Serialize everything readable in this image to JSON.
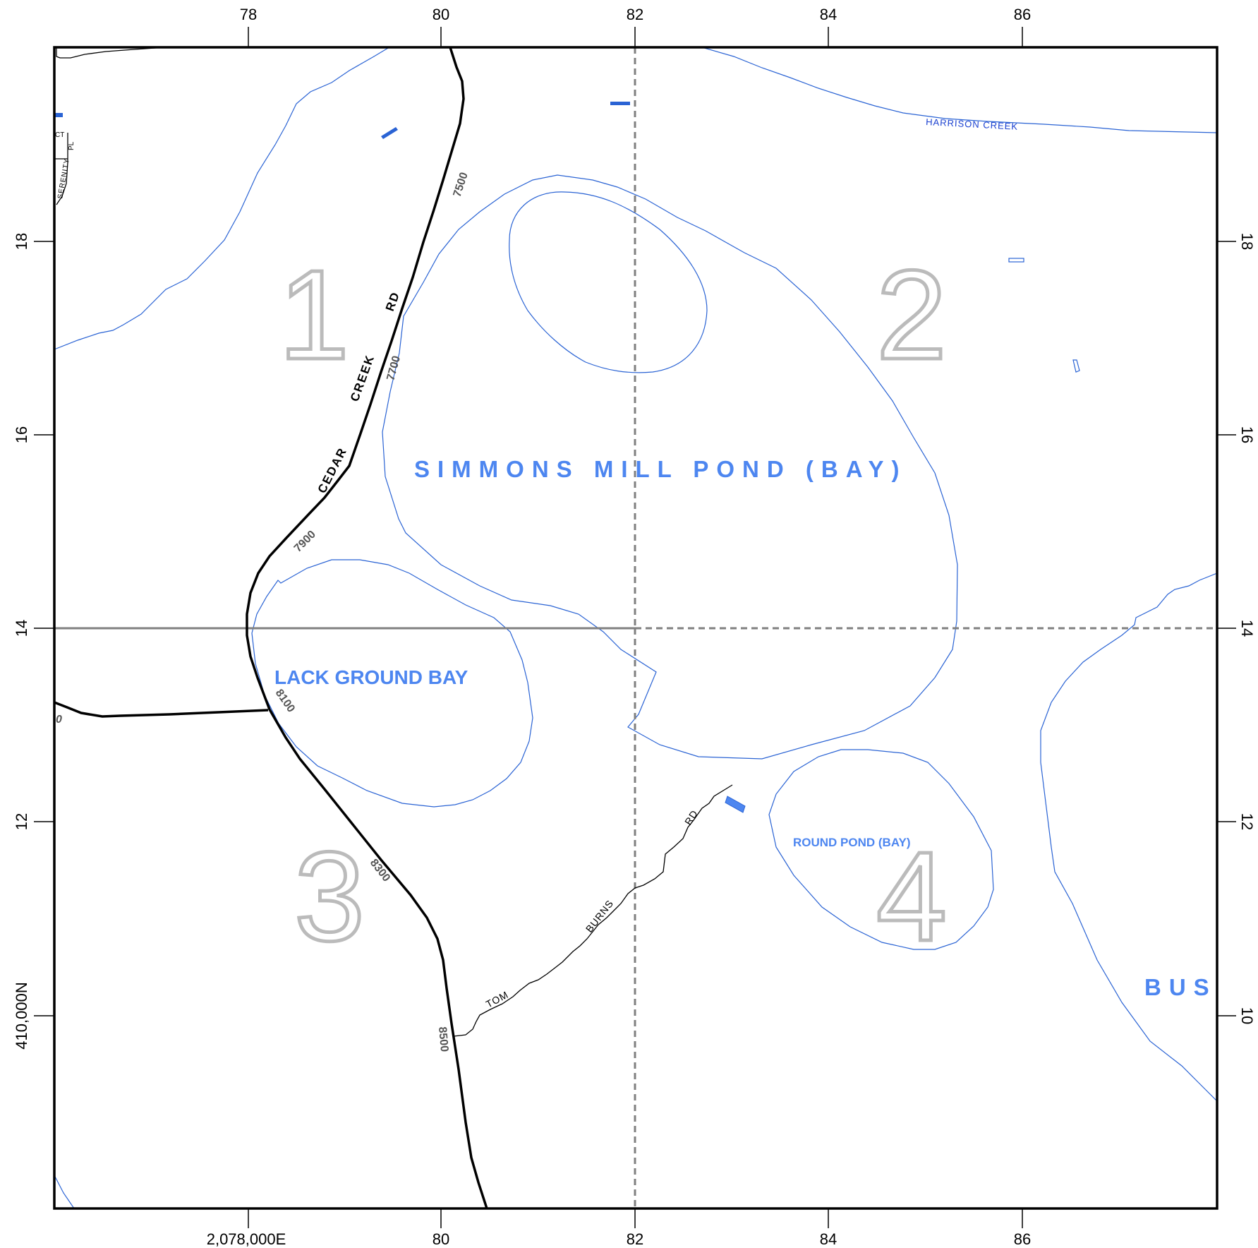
{
  "axes": {
    "top_ticks": [
      "78",
      "80",
      "82",
      "84",
      "86"
    ],
    "bottom_ticks": [
      "2,078,000E",
      "80",
      "82",
      "84",
      "86"
    ],
    "left_ticks": [
      "18",
      "16",
      "14",
      "12",
      "410,000N"
    ],
    "right_ticks": [
      "18",
      "16",
      "14",
      "12",
      "10"
    ]
  },
  "quadrants": [
    "1",
    "2",
    "3",
    "4"
  ],
  "water_labels": {
    "simmons": "SIMMONS MILL POND (BAY)",
    "lack_ground": "LACK GROUND BAY",
    "round_pond": "ROUND POND (BAY)",
    "harrison": "HARRISON CREEK",
    "bus": "BUS"
  },
  "road_labels": {
    "cedar": "CEDAR",
    "creek": "CREEK",
    "rd": "RD",
    "tom": "TOM",
    "burns": "BURNS",
    "rd2": "RD",
    "serenity": "SERENITY",
    "pl": "PL",
    "ct": "CT",
    "bus_prefix": "BUS"
  },
  "address_labels": [
    "7500",
    "7700",
    "7900",
    "8100",
    "8300",
    "8500",
    "0"
  ],
  "colors": {
    "water": "#2a63d4",
    "water_label": "#4d86f0",
    "grid": "#808080",
    "quadrant": "#bbbbbb"
  }
}
